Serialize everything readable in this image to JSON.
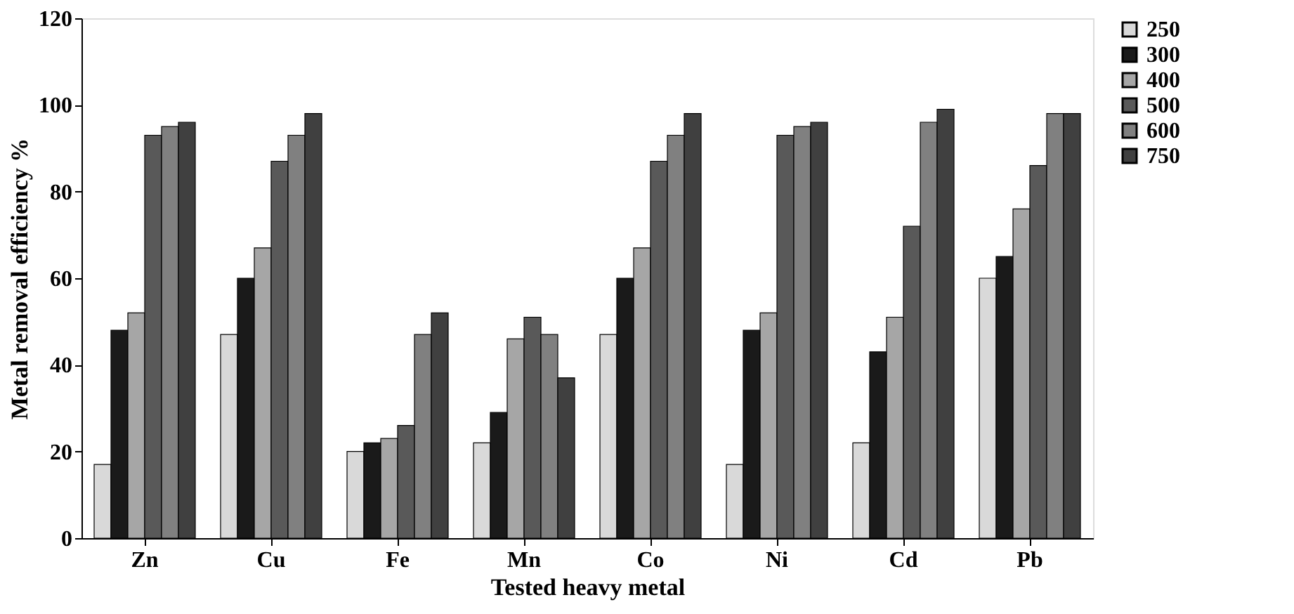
{
  "chart_data": {
    "type": "bar",
    "xlabel": "Tested heavy metal",
    "ylabel": "Metal removal efficiency %",
    "categories": [
      "Zn",
      "Cu",
      "Fe",
      "Mn",
      "Co",
      "Ni",
      "Cd",
      "Pb"
    ],
    "series": [
      {
        "name": "250",
        "color": "#d9d9d9",
        "values": [
          17,
          47,
          20,
          22,
          47,
          17,
          22,
          60
        ]
      },
      {
        "name": "300",
        "color": "#1a1a1a",
        "values": [
          48,
          60,
          22,
          29,
          60,
          48,
          43,
          65
        ]
      },
      {
        "name": "400",
        "color": "#a6a6a6",
        "values": [
          52,
          67,
          23,
          46,
          67,
          52,
          51,
          76
        ]
      },
      {
        "name": "500",
        "color": "#595959",
        "values": [
          93,
          87,
          26,
          51,
          87,
          93,
          72,
          86
        ]
      },
      {
        "name": "600",
        "color": "#808080",
        "values": [
          95,
          93,
          47,
          47,
          93,
          95,
          96,
          98
        ]
      },
      {
        "name": "750",
        "color": "#404040",
        "values": [
          96,
          98,
          52,
          37,
          98,
          96,
          99,
          98
        ]
      }
    ],
    "ylim": [
      0,
      120
    ],
    "yticks": [
      0,
      20,
      40,
      60,
      80,
      100,
      120
    ],
    "grid": false,
    "legend": "right"
  }
}
